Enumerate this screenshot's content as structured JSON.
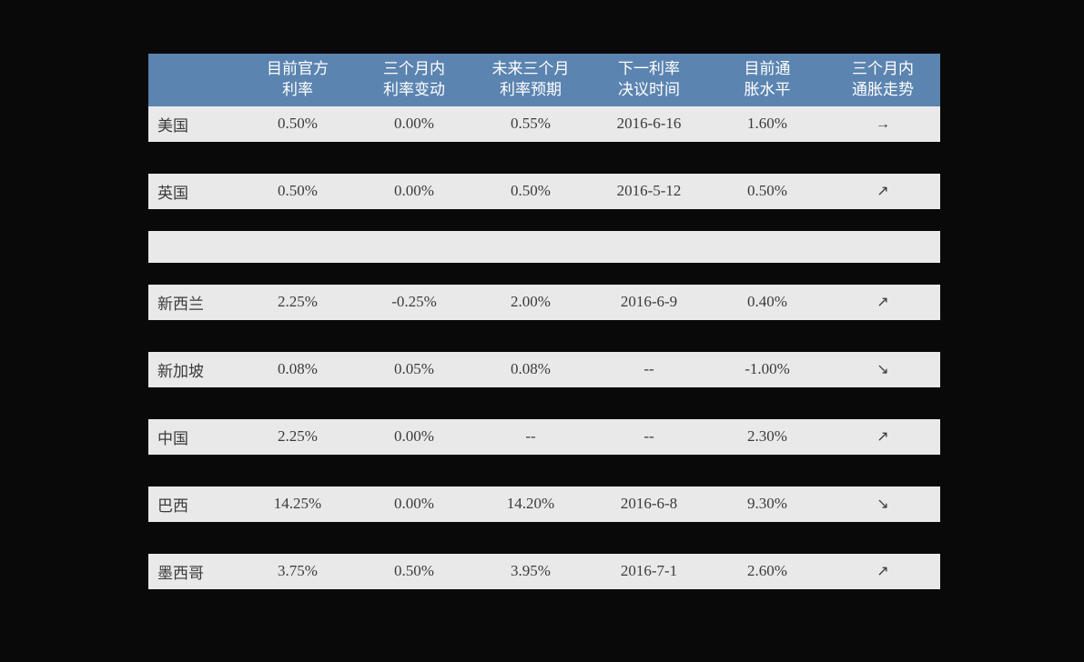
{
  "table": {
    "header_bg": "#5b84b0",
    "row_bg": "#e9e9e9",
    "page_bg": "#090909",
    "text_color": "#3b3b3b",
    "header_text_color": "#ffffff",
    "columns": [
      {
        "label": ""
      },
      {
        "label": "目前官方\n利率"
      },
      {
        "label": "三个月内\n利率变动"
      },
      {
        "label": "未来三个月\n利率预期"
      },
      {
        "label": "下一利率\n决议时间"
      },
      {
        "label": "目前通\n胀水平"
      },
      {
        "label": "三个月内\n通胀走势"
      }
    ],
    "rows": [
      {
        "country": "美国",
        "rate": "0.50%",
        "change": "0.00%",
        "forecast": "0.55%",
        "next": "2016-6-16",
        "inflation": "1.60%",
        "trend": "flat"
      },
      {
        "country": "英国",
        "rate": "0.50%",
        "change": "0.00%",
        "forecast": "0.50%",
        "next": "2016-5-12",
        "inflation": "0.50%",
        "trend": "up"
      },
      {
        "section_break": true
      },
      {
        "country": "新西兰",
        "rate": "2.25%",
        "change": "-0.25%",
        "forecast": "2.00%",
        "next": "2016-6-9",
        "inflation": "0.40%",
        "trend": "up"
      },
      {
        "country": "新加坡",
        "rate": "0.08%",
        "change": "0.05%",
        "forecast": "0.08%",
        "next": "--",
        "inflation": "-1.00%",
        "trend": "down"
      },
      {
        "country": "中国",
        "rate": "2.25%",
        "change": "0.00%",
        "forecast": "--",
        "next": "--",
        "inflation": "2.30%",
        "trend": "up"
      },
      {
        "country": "巴西",
        "rate": "14.25%",
        "change": "0.00%",
        "forecast": "14.20%",
        "next": "2016-6-8",
        "inflation": "9.30%",
        "trend": "down"
      },
      {
        "country": "墨西哥",
        "rate": "3.75%",
        "change": "0.50%",
        "forecast": "3.95%",
        "next": "2016-7-1",
        "inflation": "2.60%",
        "trend": "up"
      }
    ],
    "trend_glyphs": {
      "up": "↗",
      "down": "↘",
      "flat": "→"
    }
  }
}
